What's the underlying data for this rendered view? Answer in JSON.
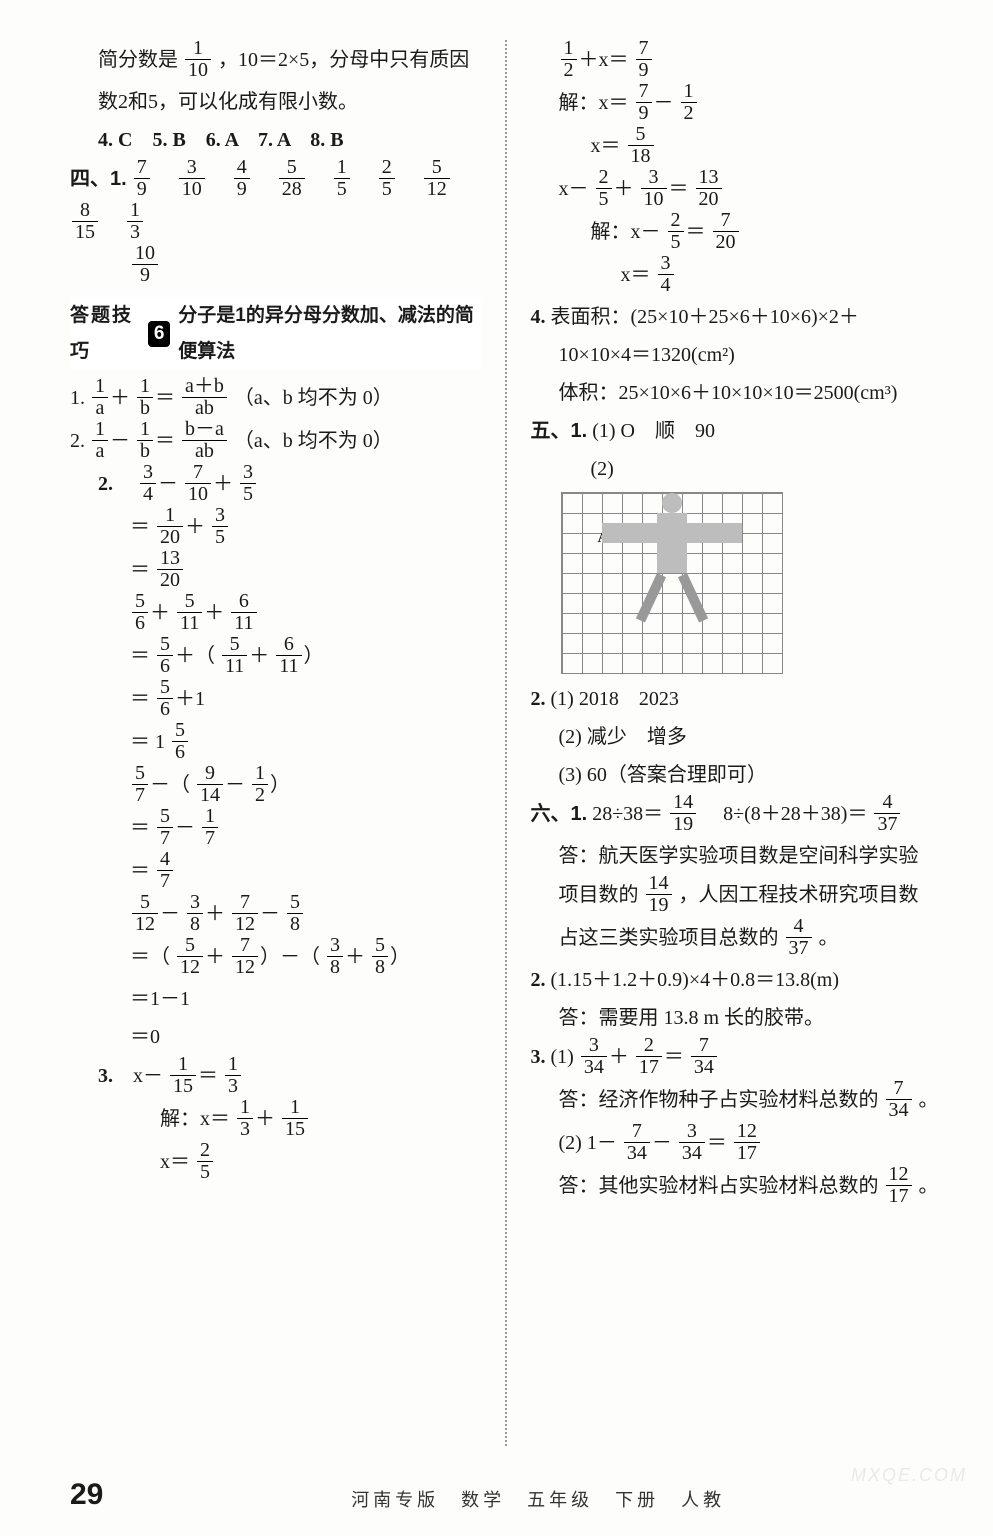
{
  "footer": {
    "page_number": "29",
    "meta": "河南专版　数学　五年级　下册　人教"
  },
  "watermark": "MXQE.COM",
  "tip": {
    "label": "答题技巧",
    "badge": "6",
    "desc": "分子是1的异分母分数加、减法的简便算法"
  },
  "left": {
    "l1a": "简分数是",
    "l1b": "，10＝2×5，分母中只有质因",
    "l2": "数2和5，可以化成有限小数。",
    "q4": "4. C　5. B　6. A　7. A　8. B",
    "sect4": "四、1.",
    "frac_row1": [
      {
        "n": "7",
        "d": "9"
      },
      {
        "n": "3",
        "d": "10"
      },
      {
        "n": "4",
        "d": "9"
      },
      {
        "n": "5",
        "d": "28"
      },
      {
        "n": "1",
        "d": "5"
      },
      {
        "n": "2",
        "d": "5"
      },
      {
        "n": "5",
        "d": "12"
      },
      {
        "n": "8",
        "d": "15"
      },
      {
        "n": "1",
        "d": "3"
      }
    ],
    "frac_row2": {
      "n": "10",
      "d": "9"
    },
    "rule1_lead": "1.",
    "rule1_rhs_n": "a＋b",
    "rule1_rhs_d": "ab",
    "rule1_tail": "（a、b 均不为 0）",
    "rule2_lead": "2.",
    "rule2_rhs_n": "b－a",
    "rule2_rhs_d": "ab",
    "rule2_tail": "（a、b 均不为 0）",
    "p2_label": "2.",
    "p2_l1": {
      "a": {
        "n": "3",
        "d": "4"
      },
      "b": {
        "n": "7",
        "d": "10"
      },
      "c": {
        "n": "3",
        "d": "5"
      }
    },
    "p2_l2": {
      "a": {
        "n": "1",
        "d": "20"
      },
      "b": {
        "n": "3",
        "d": "5"
      }
    },
    "p2_l3": {
      "n": "13",
      "d": "20"
    },
    "p2b_l1": {
      "a": {
        "n": "5",
        "d": "6"
      },
      "b": {
        "n": "5",
        "d": "11"
      },
      "c": {
        "n": "6",
        "d": "11"
      }
    },
    "p2b_l2": {
      "a": {
        "n": "5",
        "d": "6"
      },
      "b": {
        "n": "5",
        "d": "11"
      },
      "c": {
        "n": "6",
        "d": "11"
      }
    },
    "p2b_l3": {
      "n": "5",
      "d": "6"
    },
    "p2b_l4_int": "1",
    "p2b_l4_fr": {
      "n": "5",
      "d": "6"
    },
    "p2c_l1": {
      "a": {
        "n": "5",
        "d": "7"
      },
      "b": {
        "n": "9",
        "d": "14"
      },
      "c": {
        "n": "1",
        "d": "2"
      }
    },
    "p2c_l2": {
      "a": {
        "n": "5",
        "d": "7"
      },
      "b": {
        "n": "1",
        "d": "7"
      }
    },
    "p2c_l3": {
      "n": "4",
      "d": "7"
    },
    "p2d_l1": {
      "a": {
        "n": "5",
        "d": "12"
      },
      "b": {
        "n": "3",
        "d": "8"
      },
      "c": {
        "n": "7",
        "d": "12"
      },
      "e": {
        "n": "5",
        "d": "8"
      }
    },
    "p2d_l2": {
      "a": {
        "n": "5",
        "d": "12"
      },
      "b": {
        "n": "7",
        "d": "12"
      },
      "c": {
        "n": "3",
        "d": "8"
      },
      "e": {
        "n": "5",
        "d": "8"
      }
    },
    "p2d_l3": "＝1－1",
    "p2d_l4": "＝0",
    "p3_label": "3.",
    "p3_l1": {
      "a": {
        "n": "1",
        "d": "15"
      },
      "b": {
        "n": "1",
        "d": "3"
      }
    },
    "p3_l2_lead": "解：x＝",
    "p3_l2": {
      "a": {
        "n": "1",
        "d": "3"
      },
      "b": {
        "n": "1",
        "d": "15"
      }
    },
    "p3_l3_lead": "x＝",
    "p3_l3": {
      "n": "2",
      "d": "5"
    }
  },
  "right": {
    "r1_l1": {
      "a": {
        "n": "1",
        "d": "2"
      },
      "b": {
        "n": "7",
        "d": "9"
      }
    },
    "r1_l2_lead": "解：x＝",
    "r1_l2": {
      "a": {
        "n": "7",
        "d": "9"
      },
      "b": {
        "n": "1",
        "d": "2"
      }
    },
    "r1_l3_lead": "x＝",
    "r1_l3": {
      "n": "5",
      "d": "18"
    },
    "r2_l1": {
      "a": {
        "n": "2",
        "d": "5"
      },
      "b": {
        "n": "3",
        "d": "10"
      },
      "c": {
        "n": "13",
        "d": "20"
      }
    },
    "r2_l2_lead": "解：x－",
    "r2_l2": {
      "a": {
        "n": "2",
        "d": "5"
      },
      "b": {
        "n": "7",
        "d": "20"
      }
    },
    "r2_l3_lead": "x＝",
    "r2_l3": {
      "n": "3",
      "d": "4"
    },
    "q4_label": "4.",
    "q4_l1": "表面积：(25×10＋25×6＋10×6)×2＋",
    "q4_l2": "10×10×4＝1320(cm²)",
    "q4_l3": "体积：25×10×6＋10×10×10＝2500(cm³)",
    "sect5": "五、1.",
    "s5_1": "(1) O　顺　90",
    "s5_2_label": "(2)",
    "fig_label": "A",
    "s5_q2_label": "2.",
    "s5_q2_1": "(1) 2018　2023",
    "s5_q2_2": "(2) 减少　增多",
    "s5_q2_3": "(3) 60（答案合理即可）",
    "sect6": "六、1.",
    "s6_1a": {
      "lhs": "28÷38＝",
      "fr": {
        "n": "14",
        "d": "19"
      }
    },
    "s6_1b": {
      "lhs": "　8÷(8＋28＋38)＝",
      "fr": {
        "n": "4",
        "d": "37"
      }
    },
    "s6_1_ans1": "答：航天医学实验项目数是空间科学实验",
    "s6_1_ans2_a": "项目数的",
    "s6_1_ans2_fr": {
      "n": "14",
      "d": "19"
    },
    "s6_1_ans2_b": "，人因工程技术研究项目数",
    "s6_1_ans3_a": "占这三类实验项目总数的",
    "s6_1_ans3_fr": {
      "n": "4",
      "d": "37"
    },
    "s6_1_ans3_b": "。",
    "s6_q2_label": "2.",
    "s6_q2_l1": "(1.15＋1.2＋0.9)×4＋0.8＝13.8(m)",
    "s6_q2_l2": "答：需要用 13.8 m 长的胶带。",
    "s6_q3_label": "3.",
    "s6_q3_1": {
      "lead": "(1)",
      "a": {
        "n": "3",
        "d": "34"
      },
      "b": {
        "n": "2",
        "d": "17"
      },
      "c": {
        "n": "7",
        "d": "34"
      }
    },
    "s6_q3_1_ans_a": "答：经济作物种子占实验材料总数的",
    "s6_q3_1_ans_fr": {
      "n": "7",
      "d": "34"
    },
    "s6_q3_1_ans_b": "。",
    "s6_q3_2": {
      "lead": "(2) 1－",
      "a": {
        "n": "7",
        "d": "34"
      },
      "b": {
        "n": "3",
        "d": "34"
      },
      "c": {
        "n": "12",
        "d": "17"
      }
    },
    "s6_q3_2_ans_a": "答：其他实验材料占实验材料总数的",
    "s6_q3_2_ans_fr": {
      "n": "12",
      "d": "17"
    },
    "s6_q3_2_ans_b": "。"
  }
}
